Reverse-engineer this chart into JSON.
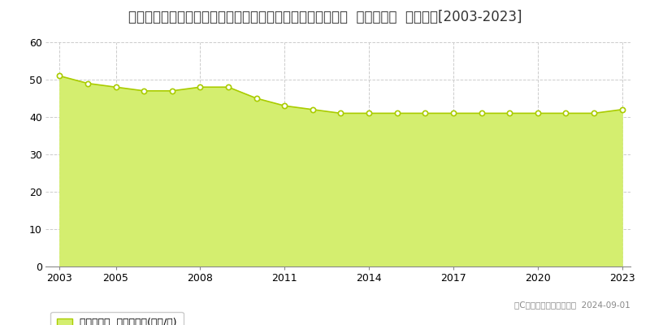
{
  "title": "埼玉県さいたま市桜区大字大久保領家字下作田６０７番１４  基準地価格  地価推移[2003-2023]",
  "years": [
    2003,
    2004,
    2005,
    2006,
    2007,
    2008,
    2009,
    2010,
    2011,
    2012,
    2013,
    2014,
    2015,
    2016,
    2017,
    2018,
    2019,
    2020,
    2021,
    2022,
    2023
  ],
  "values": [
    51,
    49,
    48,
    47,
    47,
    48,
    48,
    45,
    43,
    42,
    41,
    41,
    41,
    41,
    41,
    41,
    41,
    41,
    41,
    41,
    42
  ],
  "line_color": "#aacc00",
  "fill_color": "#d4ee6f",
  "marker_color": "#ffffff",
  "marker_edge_color": "#aacc00",
  "ylim": [
    0,
    60
  ],
  "yticks": [
    0,
    10,
    20,
    30,
    40,
    50,
    60
  ],
  "xticks": [
    2003,
    2005,
    2008,
    2011,
    2014,
    2017,
    2020,
    2023
  ],
  "grid_color": "#cccccc",
  "background_color": "#ffffff",
  "legend_label": "基準地価格  平均坪単価(万円/坪)",
  "copyright_text": "（C）土地価格ドットコム  2024-09-01",
  "title_fontsize": 12,
  "tick_fontsize": 9,
  "legend_fontsize": 9
}
